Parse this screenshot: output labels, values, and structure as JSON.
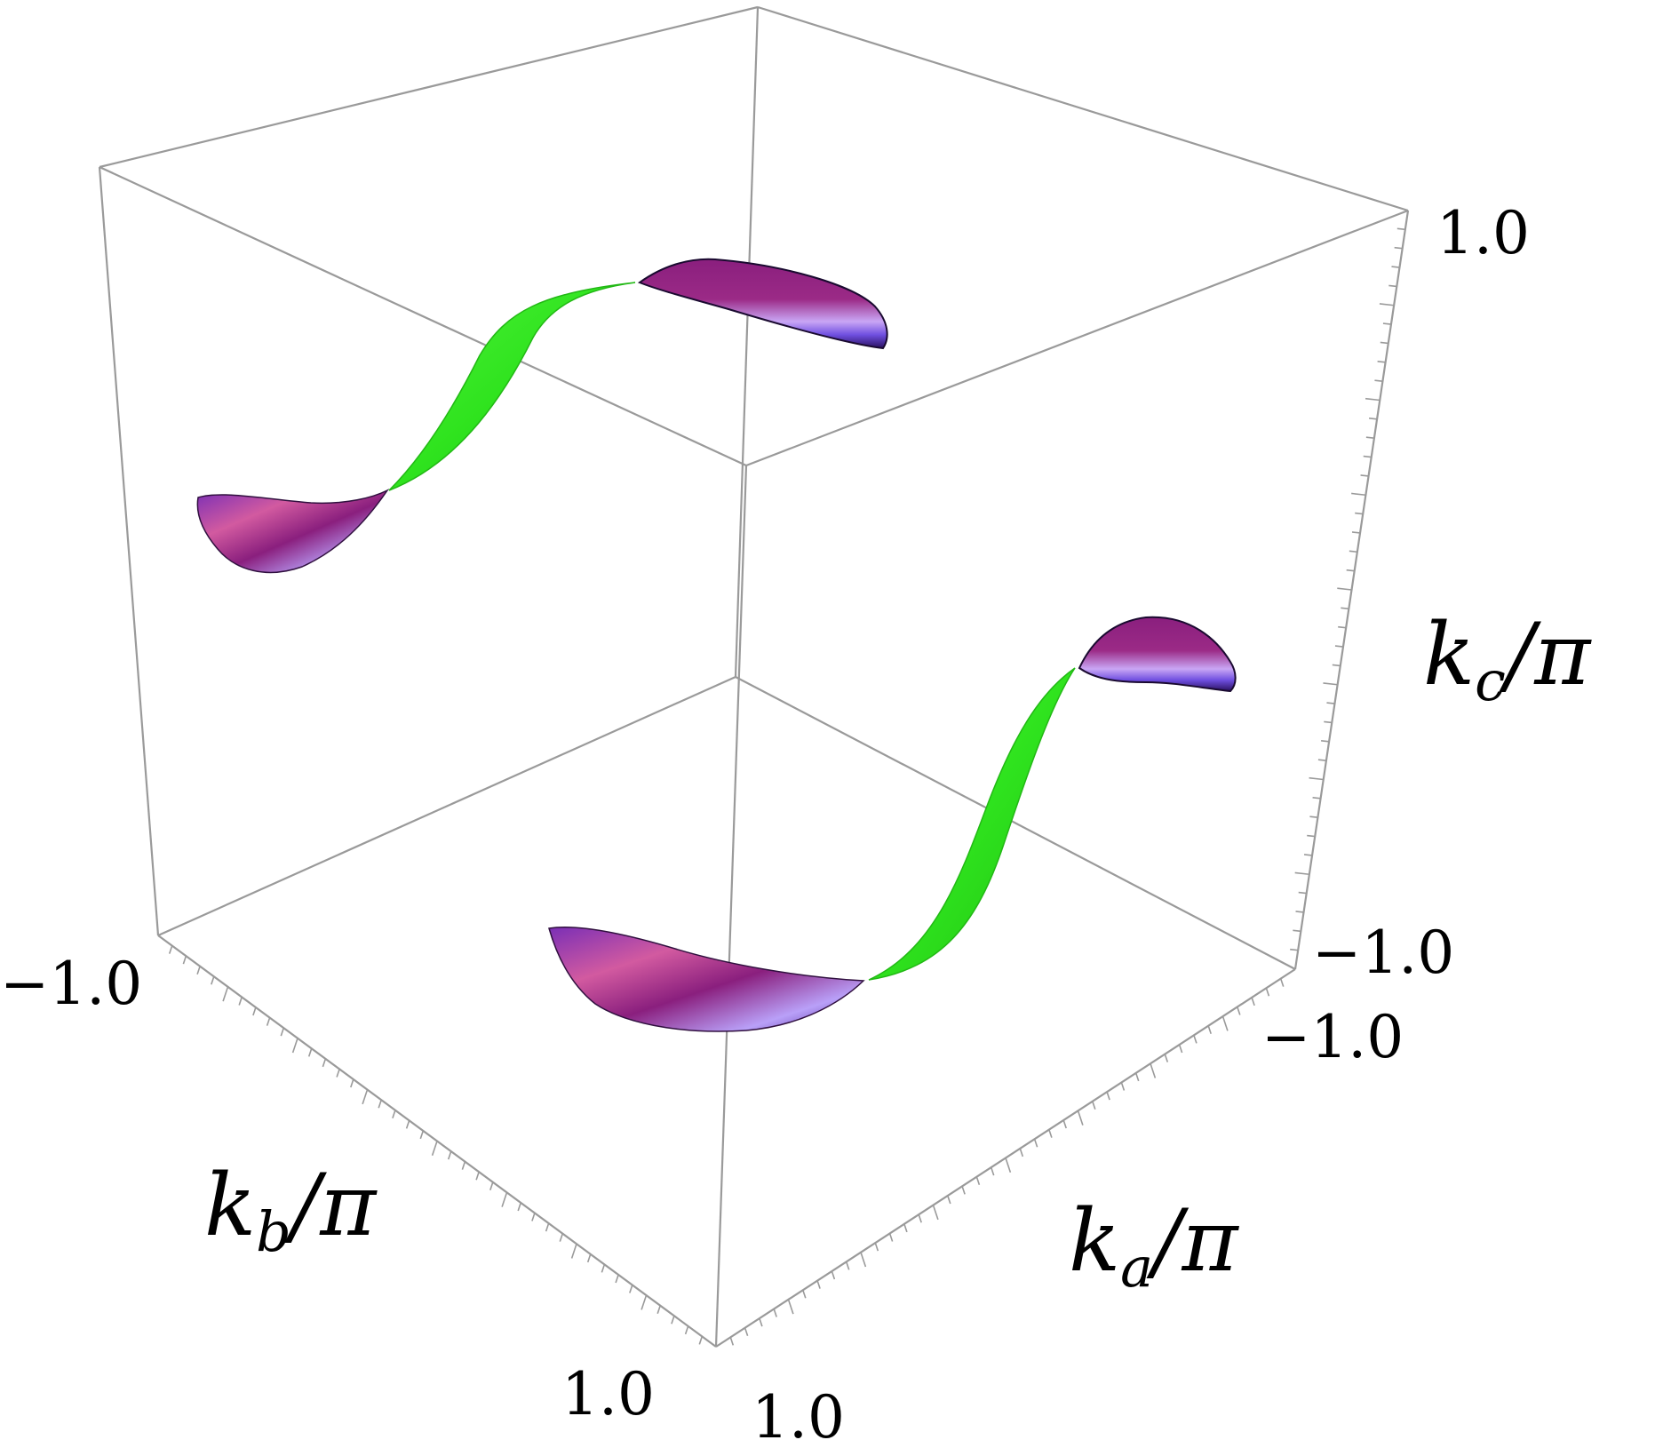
{
  "axes": {
    "kc": {
      "var": "k",
      "sub": "c",
      "rest": "/π",
      "min_label": "−1.0",
      "max_label": "1.0"
    },
    "kb": {
      "var": "k",
      "sub": "b",
      "rest": "/π",
      "min_label": "−1.0",
      "max_label": "1.0"
    },
    "ka": {
      "var": "k",
      "sub": "a",
      "rest": "/π",
      "min_label": "−1.0",
      "max_label": "1.0"
    }
  },
  "colors": {
    "box_edge": "#9a9a9a",
    "sheet_green": "#33ee22",
    "pocket_purple": "#7a1870",
    "pocket_violet": "#6a5cf0"
  },
  "surfaces": [
    {
      "name": "upper-green-sheet",
      "color": "green"
    },
    {
      "name": "upper-right-pocket",
      "color": "purple"
    },
    {
      "name": "upper-left-pocket",
      "color": "purple"
    },
    {
      "name": "lower-green-sheet",
      "color": "green"
    },
    {
      "name": "lower-right-pocket",
      "color": "purple"
    },
    {
      "name": "lower-left-pocket",
      "color": "purple"
    }
  ]
}
